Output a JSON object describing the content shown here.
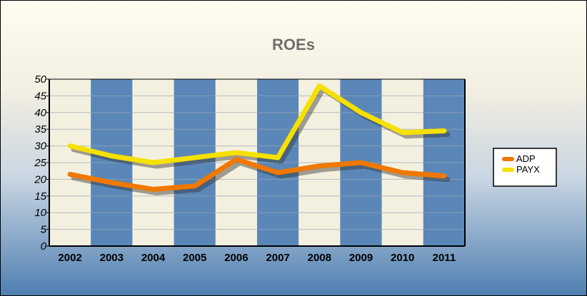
{
  "chart_data": {
    "type": "line",
    "title": "ROEs",
    "xlabel": "",
    "ylabel": "",
    "categories": [
      "2002",
      "2003",
      "2004",
      "2005",
      "2006",
      "2007",
      "2008",
      "2009",
      "2010",
      "2011"
    ],
    "y_ticks": [
      "0",
      "5",
      "10",
      "15",
      "20",
      "25",
      "30",
      "35",
      "40",
      "45",
      "50"
    ],
    "ylim": [
      0,
      50
    ],
    "grid": true,
    "legend_position": "right",
    "series": [
      {
        "name": "ADP",
        "color": "#f07800",
        "values": [
          21.5,
          19,
          17,
          18,
          26,
          22,
          24,
          25,
          22,
          21
        ]
      },
      {
        "name": "PAYX",
        "color": "#f5e000",
        "values": [
          30,
          27,
          25,
          26.5,
          28,
          26.5,
          48,
          40,
          34,
          34.5
        ]
      }
    ],
    "colors": {
      "band_dark": "#5a87b8",
      "band_light": "#f4f0e0",
      "title": "#6e6e6e"
    }
  }
}
